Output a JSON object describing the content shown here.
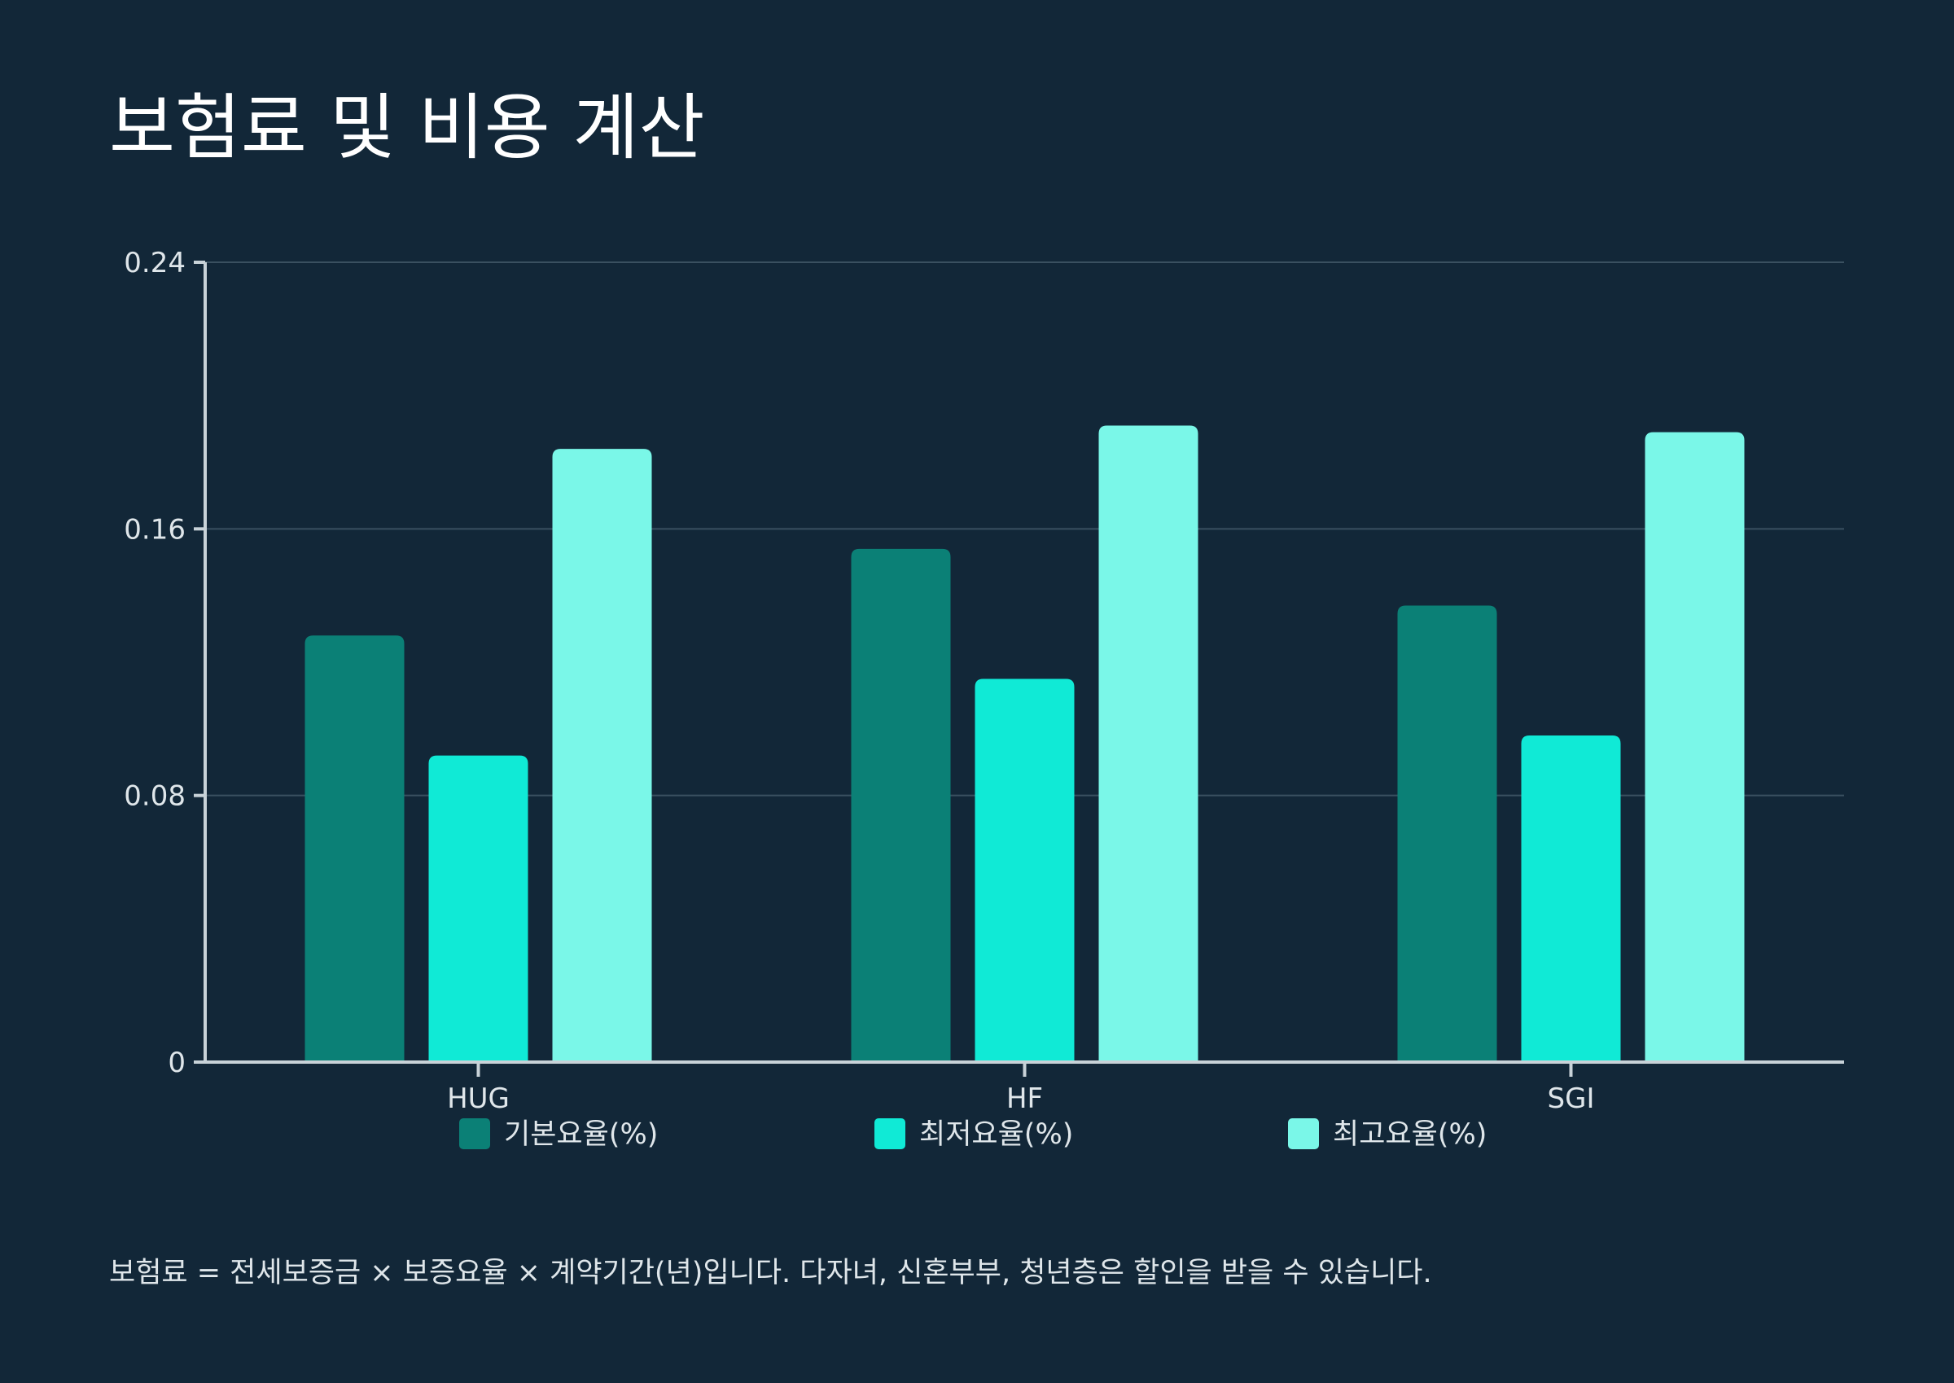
{
  "title": "보험료 및 비용 계산",
  "footnote": "보험료 = 전세보증금 × 보증요율 × 계약기간(년)입니다. 다자녀, 신혼부부, 청년층은 할인을 받을 수 있습니다.",
  "chart_data": {
    "type": "bar",
    "title": "보험료 및 비용 계산",
    "xlabel": "",
    "ylabel": "",
    "categories": [
      "HUG",
      "HF",
      "SGI"
    ],
    "series": [
      {
        "name": "기본요율(%)",
        "values": [
          0.128,
          0.154,
          0.137
        ],
        "color": "#0b8076"
      },
      {
        "name": "최저요율(%)",
        "values": [
          0.092,
          0.115,
          0.098
        ],
        "color": "#10ead6"
      },
      {
        "name": "최고요율(%)",
        "values": [
          0.184,
          0.191,
          0.189
        ],
        "color": "#7af7e8"
      }
    ],
    "ylim": [
      0,
      0.24
    ],
    "yticks": [
      0,
      0.08,
      0.16,
      0.24
    ],
    "ytick_labels": [
      "0",
      "0.08",
      "0.16",
      "0.24"
    ],
    "grid": true,
    "legend_position": "bottom-center"
  },
  "colors": {
    "background": "#122738",
    "axis": "#c8d2d8",
    "grid": "#3a5060",
    "text": "#dfe6ea"
  }
}
